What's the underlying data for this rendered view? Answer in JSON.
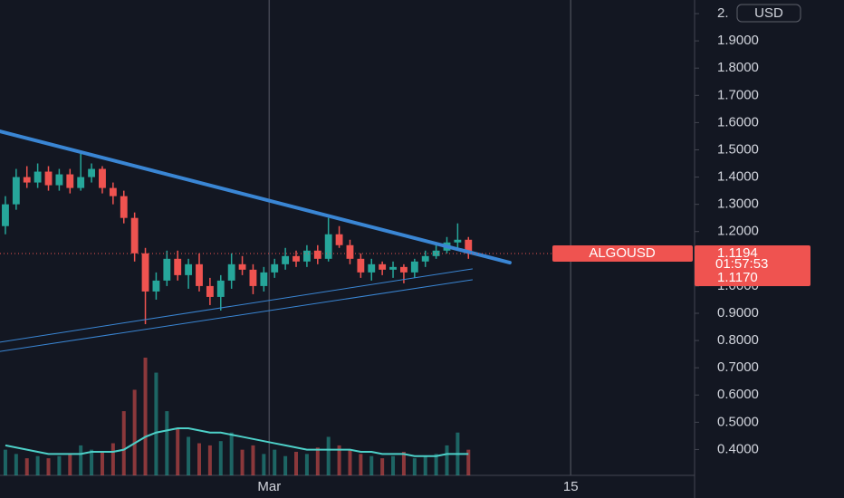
{
  "chart_data": {
    "type": "candlestick",
    "symbol": "ALGOUSD",
    "currency": "USD",
    "countdown": "01:57:53",
    "last_price": 1.1194,
    "marker_price": {
      "value": 1.117,
      "label": "1.1170"
    },
    "up_color": "#26a69a",
    "down_color": "#ef5350",
    "x": [
      -12.25,
      -11.75,
      -11.25,
      -10.75,
      -10.25,
      -9.75,
      -9.25,
      -8.75,
      -8.25,
      -7.75,
      -7.25,
      -6.75,
      -6.25,
      -5.75,
      -5.25,
      -4.75,
      -4.25,
      -3.75,
      -3.25,
      -2.75,
      -2.25,
      -1.75,
      -1.25,
      -0.75,
      -0.25,
      0.25,
      0.75,
      1.25,
      1.75,
      2.25,
      2.75,
      3.25,
      3.75,
      4.25,
      4.75,
      5.25,
      5.75,
      6.25,
      6.75,
      7.25,
      7.75,
      8.25,
      8.75,
      9.25
    ],
    "open": [
      1.22,
      1.3,
      1.4,
      1.38,
      1.42,
      1.37,
      1.41,
      1.36,
      1.4,
      1.43,
      1.36,
      1.33,
      1.25,
      1.12,
      0.98,
      1.02,
      1.1,
      1.04,
      1.08,
      1.0,
      0.96,
      1.02,
      1.08,
      1.06,
      1.0,
      1.05,
      1.08,
      1.11,
      1.09,
      1.13,
      1.1,
      1.19,
      1.15,
      1.1,
      1.05,
      1.08,
      1.06,
      1.07,
      1.05,
      1.09,
      1.11,
      1.13,
      1.16,
      1.17
    ],
    "high": [
      1.33,
      1.43,
      1.44,
      1.45,
      1.44,
      1.43,
      1.43,
      1.49,
      1.45,
      1.44,
      1.38,
      1.35,
      1.27,
      1.14,
      1.05,
      1.13,
      1.13,
      1.1,
      1.12,
      1.03,
      1.04,
      1.12,
      1.11,
      1.08,
      1.07,
      1.1,
      1.14,
      1.13,
      1.15,
      1.15,
      1.25,
      1.22,
      1.17,
      1.12,
      1.1,
      1.09,
      1.09,
      1.08,
      1.1,
      1.13,
      1.15,
      1.18,
      1.23,
      1.18
    ],
    "low": [
      1.19,
      1.28,
      1.36,
      1.36,
      1.35,
      1.35,
      1.34,
      1.35,
      1.38,
      1.34,
      1.3,
      1.23,
      1.09,
      0.86,
      0.95,
      1.0,
      1.02,
      0.99,
      0.98,
      0.93,
      0.91,
      0.99,
      1.04,
      0.97,
      0.98,
      1.03,
      1.06,
      1.07,
      1.07,
      1.08,
      1.09,
      1.14,
      1.08,
      1.03,
      1.02,
      1.04,
      1.03,
      1.01,
      1.03,
      1.07,
      1.1,
      1.12,
      1.14,
      1.1
    ],
    "close": [
      1.3,
      1.4,
      1.38,
      1.42,
      1.37,
      1.41,
      1.36,
      1.4,
      1.43,
      1.36,
      1.33,
      1.25,
      1.12,
      0.98,
      1.02,
      1.1,
      1.04,
      1.08,
      1.0,
      0.96,
      1.02,
      1.08,
      1.06,
      1.0,
      1.05,
      1.08,
      1.11,
      1.09,
      1.13,
      1.1,
      1.19,
      1.15,
      1.1,
      1.05,
      1.08,
      1.06,
      1.07,
      1.05,
      1.09,
      1.11,
      1.13,
      1.16,
      1.17,
      1.12
    ],
    "volume": [
      12,
      10,
      8,
      9,
      8,
      9,
      10,
      14,
      12,
      11,
      15,
      30,
      40,
      55,
      48,
      30,
      22,
      18,
      15,
      14,
      16,
      20,
      12,
      14,
      10,
      12,
      9,
      11,
      10,
      13,
      18,
      14,
      12,
      10,
      9,
      8,
      9,
      11,
      8,
      9,
      10,
      14,
      20,
      12
    ],
    "volume_ma": [
      14,
      13,
      12,
      11,
      10,
      10,
      10,
      10,
      11,
      11,
      11,
      12,
      15,
      18,
      20,
      21,
      22,
      22,
      21,
      20,
      20,
      19,
      18,
      17,
      16,
      15,
      14,
      13,
      12,
      12,
      12,
      12,
      12,
      11,
      11,
      10,
      10,
      10,
      9,
      9,
      9,
      10,
      10,
      10
    ],
    "volume_ma_color": "#4dd0c8",
    "trendlines": [
      {
        "x": [
          -12.5,
          11.17
        ],
        "y": [
          1.568,
          1.086
        ],
        "color": "#3a86d4",
        "width": 4
      },
      {
        "x": [
          -12.5,
          9.43
        ],
        "y": [
          0.794,
          1.063
        ],
        "color": "#3a86d4",
        "width": 1
      },
      {
        "x": [
          -12.5,
          9.43
        ],
        "y": [
          0.76,
          1.023
        ],
        "color": "#3a86d4",
        "width": 1
      }
    ],
    "xlim": [
      -12.5,
      19.75
    ],
    "ylim": [
      0.305,
      2.05
    ],
    "xticks": [
      {
        "value": 0,
        "label": "Mar"
      },
      {
        "value": 14,
        "label": "15"
      }
    ],
    "yticks": [
      {
        "value": 0.4,
        "label": "0.4000"
      },
      {
        "value": 0.5,
        "label": "0.5000"
      },
      {
        "value": 0.6,
        "label": "0.6000"
      },
      {
        "value": 0.7,
        "label": "0.7000"
      },
      {
        "value": 0.8,
        "label": "0.8000"
      },
      {
        "value": 0.9,
        "label": "0.9000"
      },
      {
        "value": 1.0,
        "label": "1.0000"
      },
      {
        "value": 1.1,
        "label": "1.1000"
      },
      {
        "value": 1.2,
        "label": "1.2000"
      },
      {
        "value": 1.3,
        "label": "1.3000"
      },
      {
        "value": 1.4,
        "label": "1.4000"
      },
      {
        "value": 1.5,
        "label": "1.5000"
      },
      {
        "value": 1.6,
        "label": "1.6000"
      },
      {
        "value": 1.7,
        "label": "1.7000"
      },
      {
        "value": 1.8,
        "label": "1.8000"
      },
      {
        "value": 1.9,
        "label": "1.9000"
      },
      {
        "value": 2.0,
        "label": "2."
      }
    ]
  }
}
